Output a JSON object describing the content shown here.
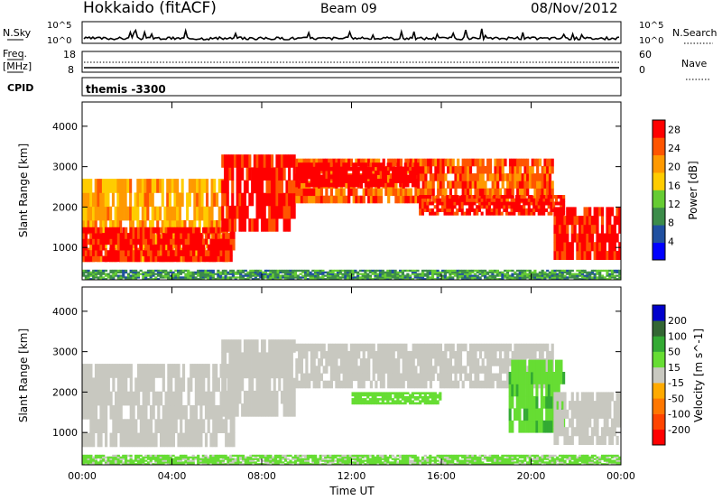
{
  "header": {
    "station": "Hokkaido (fitACF)",
    "beam": "Beam 09",
    "date": "08/Nov/2012"
  },
  "nsky_panel": {
    "label": "N.Sky",
    "left_ticks": [
      "10^5",
      "10^0"
    ],
    "right_ticks": [
      "10^5",
      "10^0"
    ],
    "right_label": "N.Search"
  },
  "freq_panel": {
    "label_line1": "Freq.",
    "label_line2": "[MHz]",
    "left_ticks": [
      "18",
      "8"
    ],
    "right_ticks": [
      "60",
      "0"
    ],
    "right_label": "Nave"
  },
  "cpid_panel": {
    "label": "CPID",
    "value": "themis -3300"
  },
  "colors": {
    "power_scale": [
      "#0000ff",
      "#2050a0",
      "#3c8c4a",
      "#66cc33",
      "#ffcc00",
      "#ff9900",
      "#ff5500",
      "#ff0000"
    ],
    "velocity_scale": [
      "#0000cc",
      "#336633",
      "#33aa33",
      "#66dd33",
      "#c8c8c0",
      "#ffaa00",
      "#ff7700",
      "#ff4400",
      "#ff0000"
    ],
    "ground_scatter": "#c8c8c0"
  },
  "chart_data": [
    {
      "type": "heatmap",
      "name": "power",
      "xlabel": "",
      "ylabel": "Slant Range [km]",
      "xlim": [
        "00:00",
        "24:00"
      ],
      "ylim": [
        200,
        4600
      ],
      "yticks": [
        1000,
        2000,
        3000,
        4000
      ],
      "xticks": [
        "00:00",
        "04:00",
        "08:00",
        "12:00",
        "16:00",
        "20:00",
        "00:00"
      ],
      "colorbar": {
        "label": "Power [dB]",
        "ticks": [
          4,
          8,
          12,
          16,
          20,
          24,
          28
        ],
        "range": [
          0,
          30
        ]
      },
      "bands": [
        {
          "t": [
            0,
            6.5
          ],
          "range_km": [
            650,
            2700
          ],
          "level": 20
        },
        {
          "t": [
            0,
            6.8
          ],
          "range_km": [
            650,
            1500
          ],
          "level": 28
        },
        {
          "t": [
            6.2,
            9.5
          ],
          "range_km": [
            1400,
            3300
          ],
          "level": 28
        },
        {
          "t": [
            9.5,
            21
          ],
          "range_km": [
            2100,
            3200
          ],
          "level": 24
        },
        {
          "t": [
            9.5,
            15
          ],
          "range_km": [
            2500,
            3100
          ],
          "level": 30
        },
        {
          "t": [
            15,
            21.5
          ],
          "range_km": [
            1800,
            2300
          ],
          "level": 28
        },
        {
          "t": [
            21,
            24
          ],
          "range_km": [
            700,
            2000
          ],
          "level": 28
        },
        {
          "t": [
            0,
            24
          ],
          "range_km": [
            200,
            450
          ],
          "level": 10
        }
      ]
    },
    {
      "type": "heatmap",
      "name": "velocity",
      "xlabel": "Time UT",
      "ylabel": "Slant Range [km]",
      "xlim": [
        "00:00",
        "24:00"
      ],
      "ylim": [
        200,
        4600
      ],
      "yticks": [
        1000,
        2000,
        3000,
        4000
      ],
      "xticks": [
        "00:00",
        "04:00",
        "08:00",
        "12:00",
        "16:00",
        "20:00",
        "00:00"
      ],
      "colorbar": {
        "label": "Velocity [m s^-1]",
        "ticks": [
          200,
          100,
          50,
          15,
          -15,
          -50,
          -100,
          -200
        ],
        "range": [
          -250,
          250
        ]
      },
      "bands": [
        {
          "t": [
            0,
            6.8
          ],
          "range_km": [
            650,
            2700
          ],
          "level": 0
        },
        {
          "t": [
            6.2,
            9.5
          ],
          "range_km": [
            1400,
            3300
          ],
          "level": 0
        },
        {
          "t": [
            9.5,
            21
          ],
          "range_km": [
            2100,
            3200
          ],
          "level": 0
        },
        {
          "t": [
            12,
            16
          ],
          "range_km": [
            1700,
            2000
          ],
          "level": 60
        },
        {
          "t": [
            19,
            21.5
          ],
          "range_km": [
            1000,
            2800
          ],
          "level": 70
        },
        {
          "t": [
            21,
            24
          ],
          "range_km": [
            700,
            2000
          ],
          "level": 0
        },
        {
          "t": [
            0,
            24
          ],
          "range_km": [
            200,
            450
          ],
          "level": 40
        }
      ]
    }
  ]
}
